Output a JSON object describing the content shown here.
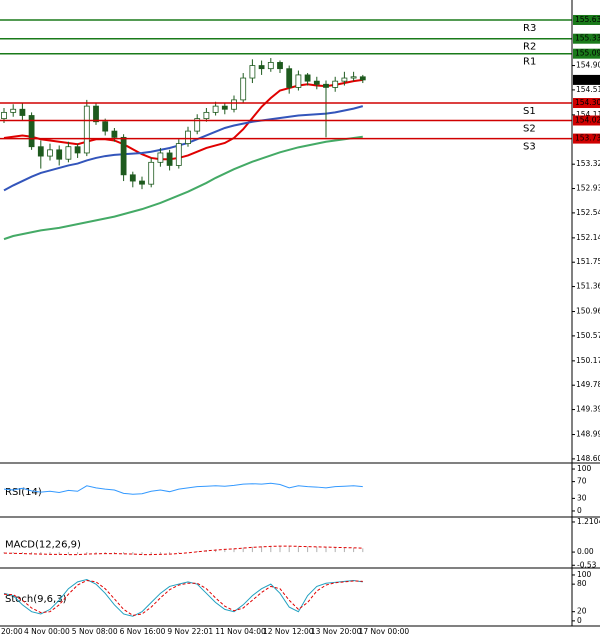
{
  "chart_data": {
    "type": "candlestick",
    "ylim": [
      148.55,
      155.95
    ],
    "yticks": [
      {
        "value": 154.9,
        "label": "154.90"
      },
      154.51,
      154.11,
      153.32,
      152.93,
      152.54,
      152.14,
      151.75,
      151.36,
      150.96,
      150.57,
      150.17,
      149.78,
      149.39,
      148.99,
      {
        "value": 148.6,
        "label": "148.60"
      }
    ],
    "x_labels": [
      "20:00",
      "4 Nov 00:00",
      "5 Nov 08:00",
      "6 Nov 16:00",
      "9 Nov 22:01",
      "11 Nov 04:00",
      "12 Nov 12:00",
      "13 Nov 20:00",
      "17 Nov 00:00"
    ],
    "open": [
      154.05,
      154.15,
      154.2,
      154.1,
      153.6,
      153.45,
      153.55,
      153.4,
      153.6,
      153.5,
      154.25,
      154.0,
      153.85,
      153.75,
      153.15,
      153.05,
      153.0,
      153.35,
      153.5,
      153.3,
      153.65,
      153.85,
      154.05,
      154.15,
      154.25,
      154.2,
      154.35,
      154.7,
      154.9,
      154.85,
      154.95,
      154.85,
      154.55,
      154.75,
      154.65,
      154.6,
      154.55,
      154.65,
      154.7,
      154.72
    ],
    "high": [
      154.22,
      154.28,
      154.3,
      154.15,
      153.7,
      153.65,
      153.62,
      153.68,
      153.65,
      154.35,
      154.3,
      154.05,
      153.9,
      153.8,
      153.2,
      153.12,
      153.42,
      153.58,
      153.55,
      153.72,
      153.92,
      154.12,
      154.22,
      154.32,
      154.3,
      154.42,
      154.78,
      155.0,
      154.98,
      155.02,
      154.98,
      154.9,
      154.82,
      154.78,
      154.72,
      154.66,
      154.72,
      154.8,
      154.8,
      154.75
    ],
    "low": [
      153.98,
      154.08,
      154.02,
      153.55,
      153.25,
      153.38,
      153.3,
      153.35,
      153.42,
      153.45,
      153.95,
      153.78,
      153.68,
      153.05,
      152.95,
      152.92,
      152.95,
      153.28,
      153.22,
      153.25,
      153.6,
      153.8,
      154.0,
      154.1,
      154.12,
      154.15,
      154.3,
      154.62,
      154.75,
      154.8,
      154.78,
      154.45,
      154.5,
      154.58,
      154.52,
      153.75,
      154.48,
      154.58,
      154.65,
      154.62
    ],
    "close": [
      154.15,
      154.2,
      154.1,
      153.6,
      153.45,
      153.55,
      153.4,
      153.6,
      153.5,
      154.25,
      154.0,
      153.85,
      153.75,
      153.15,
      153.05,
      153.0,
      153.35,
      153.5,
      153.3,
      153.65,
      153.85,
      154.05,
      154.15,
      154.25,
      154.2,
      154.35,
      154.7,
      154.9,
      154.85,
      154.95,
      154.85,
      154.55,
      154.75,
      154.65,
      154.6,
      154.55,
      154.65,
      154.7,
      154.72,
      154.67
    ],
    "up_color": "#ffffff",
    "down_color": "#1e5a1e",
    "wick_color": "#1e5a1e",
    "moving_averages": [
      {
        "color": "#e00000",
        "values": [
          153.74,
          153.76,
          153.78,
          153.76,
          153.72,
          153.7,
          153.68,
          153.66,
          153.64,
          153.68,
          153.72,
          153.72,
          153.7,
          153.64,
          153.56,
          153.48,
          153.42,
          153.4,
          153.4,
          153.42,
          153.46,
          153.52,
          153.58,
          153.62,
          153.66,
          153.74,
          153.88,
          154.06,
          154.24,
          154.38,
          154.5,
          154.54,
          154.58,
          154.6,
          154.58,
          154.57,
          154.59,
          154.62,
          154.65,
          154.67
        ]
      },
      {
        "color": "#3355bb",
        "values": [
          152.9,
          152.98,
          153.05,
          153.12,
          153.18,
          153.22,
          153.26,
          153.3,
          153.33,
          153.38,
          153.42,
          153.45,
          153.47,
          153.48,
          153.49,
          153.5,
          153.52,
          153.55,
          153.58,
          153.62,
          153.66,
          153.72,
          153.78,
          153.84,
          153.9,
          153.94,
          153.97,
          154.0,
          154.02,
          154.04,
          154.06,
          154.08,
          154.1,
          154.11,
          154.12,
          154.13,
          154.15,
          154.18,
          154.21,
          154.25
        ]
      },
      {
        "color": "#44aa66",
        "values": [
          152.12,
          152.17,
          152.2,
          152.23,
          152.26,
          152.28,
          152.3,
          152.33,
          152.36,
          152.39,
          152.42,
          152.45,
          152.48,
          152.52,
          152.56,
          152.6,
          152.65,
          152.7,
          152.76,
          152.82,
          152.88,
          152.95,
          153.02,
          153.1,
          153.17,
          153.24,
          153.3,
          153.36,
          153.41,
          153.46,
          153.51,
          153.55,
          153.59,
          153.62,
          153.65,
          153.68,
          153.7,
          153.72,
          153.74,
          153.76
        ]
      }
    ],
    "levels": [
      {
        "name": "R3",
        "value": 155.63,
        "color": "#1a7a1a"
      },
      {
        "name": "R2",
        "value": 155.33,
        "color": "#1a7a1a"
      },
      {
        "name": "R1",
        "value": 155.09,
        "color": "#1a7a1a"
      },
      {
        "name": "S1",
        "value": 154.3,
        "value_label": "154.30",
        "color": "#d00000"
      },
      {
        "name": "S2",
        "value": 154.02,
        "color": "#d00000"
      },
      {
        "name": "S3",
        "value": 153.73,
        "color": "#d00000"
      }
    ],
    "current_price": 154.67,
    "indicators": [
      {
        "title": "RSI(14)",
        "ylim": [
          -12,
          112
        ],
        "yticks": [
          100,
          70,
          30,
          0
        ],
        "series": [
          {
            "style": "line",
            "color": "#3399ff",
            "values": [
              52,
              50,
              54,
              48,
              45,
              47,
              44,
              49,
              47,
              60,
              55,
              52,
              50,
              42,
              40,
              41,
              47,
              50,
              46,
              52,
              55,
              58,
              59,
              60,
              59,
              61,
              64,
              65,
              64,
              66,
              63,
              55,
              60,
              58,
              57,
              55,
              58,
              59,
              60,
              58
            ]
          }
        ]
      },
      {
        "title": "MACD(12,26,9)",
        "ylim": [
          -0.6,
          1.37
        ],
        "yticks": [
          1.2104,
          {
            "value": 0,
            "label": "0.00"
          },
          -0.53
        ],
        "series": [
          {
            "style": "bar",
            "color": "#b0b0b0",
            "values": [
              -0.05,
              -0.06,
              -0.07,
              -0.08,
              -0.09,
              -0.09,
              -0.1,
              -0.1,
              -0.09,
              -0.06,
              -0.05,
              -0.05,
              -0.06,
              -0.08,
              -0.1,
              -0.11,
              -0.1,
              -0.08,
              -0.07,
              -0.04,
              0.0,
              0.04,
              0.08,
              0.11,
              0.13,
              0.15,
              0.18,
              0.21,
              0.23,
              0.25,
              0.25,
              0.23,
              0.23,
              0.22,
              0.21,
              0.19,
              0.18,
              0.17,
              0.16,
              0.15
            ]
          },
          {
            "style": "dashed",
            "color": "#e00000",
            "values": [
              -0.04,
              -0.05,
              -0.06,
              -0.07,
              -0.08,
              -0.09,
              -0.09,
              -0.1,
              -0.1,
              -0.08,
              -0.07,
              -0.06,
              -0.06,
              -0.07,
              -0.08,
              -0.1,
              -0.1,
              -0.09,
              -0.08,
              -0.06,
              -0.03,
              0.01,
              0.05,
              0.08,
              0.11,
              0.13,
              0.16,
              0.19,
              0.21,
              0.23,
              0.24,
              0.24,
              0.23,
              0.22,
              0.21,
              0.2,
              0.19,
              0.18,
              0.17,
              0.16
            ]
          }
        ]
      },
      {
        "title": "Stoch(9,6,3)",
        "ylim": [
          -9,
          113
        ],
        "yticks": [
          100,
          80,
          20,
          0
        ],
        "series": [
          {
            "style": "line",
            "color": "#20a0c0",
            "values": [
              60,
              55,
              35,
              20,
              15,
              25,
              45,
              70,
              85,
              90,
              80,
              60,
              35,
              15,
              10,
              20,
              40,
              60,
              75,
              80,
              85,
              80,
              60,
              40,
              25,
              20,
              35,
              55,
              70,
              80,
              60,
              30,
              20,
              55,
              75,
              82,
              84,
              86,
              88,
              85
            ]
          },
          {
            "style": "dashed",
            "color": "#e00000",
            "values": [
              58,
              57,
              45,
              28,
              18,
              20,
              35,
              58,
              78,
              88,
              85,
              70,
              48,
              25,
              12,
              15,
              30,
              50,
              68,
              78,
              82,
              82,
              70,
              50,
              32,
              22,
              28,
              45,
              62,
              75,
              70,
              45,
              25,
              40,
              65,
              78,
              83,
              85,
              87,
              86
            ]
          }
        ]
      }
    ]
  }
}
